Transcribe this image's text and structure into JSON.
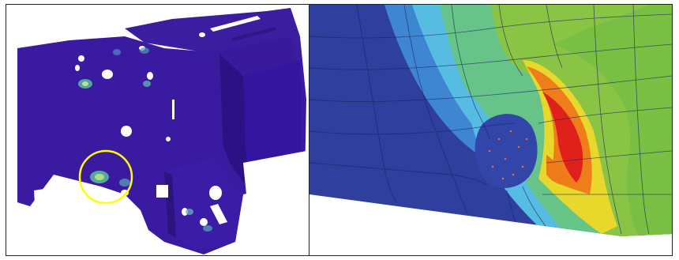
{
  "figure": {
    "left_panel": {
      "model_color": "#3a1aa0",
      "highlight_circle_color": "#ffff00"
    },
    "right_panel": {
      "colormap": [
        "#2d3fa0",
        "#3f7fd4",
        "#57bde3",
        "#67c58a",
        "#8ac544",
        "#c7d82a",
        "#f2c318",
        "#ef7b19",
        "#e4231b"
      ]
    }
  }
}
